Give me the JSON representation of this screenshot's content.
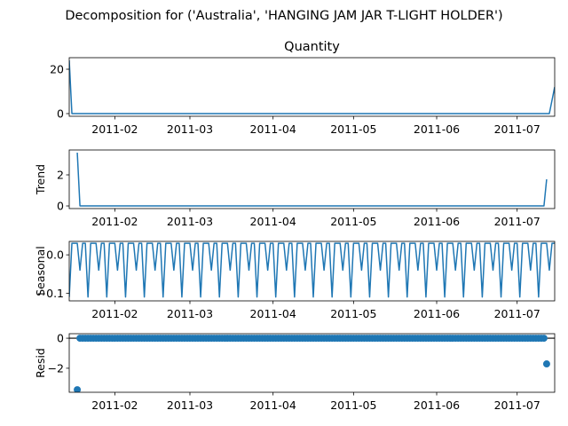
{
  "chart_data": {
    "type": "line",
    "suptitle": "Decomposition for ('Australia', 'HANGING JAM JAR T-LIGHT HOLDER')",
    "x_start": "2011-01-15",
    "x_end": "2011-07-15",
    "x_ticks": [
      {
        "date": "2011-02-01",
        "label": "2011-02"
      },
      {
        "date": "2011-03-01",
        "label": "2011-03"
      },
      {
        "date": "2011-04-01",
        "label": "2011-04"
      },
      {
        "date": "2011-05-01",
        "label": "2011-05"
      },
      {
        "date": "2011-06-01",
        "label": "2011-06"
      },
      {
        "date": "2011-07-01",
        "label": "2011-07"
      }
    ],
    "colors": {
      "series": "#1f77b4",
      "axis": "#000000"
    },
    "panels": [
      {
        "id": "observed",
        "title": "Quantity",
        "ylabel": "",
        "kind": "line",
        "ylim": [
          -1.2,
          25.2
        ],
        "yticks": [
          {
            "v": 0,
            "label": "0"
          },
          {
            "v": 20,
            "label": "20"
          }
        ],
        "points": [
          [
            "2011-01-15",
            24
          ],
          [
            "2011-01-16",
            0
          ],
          [
            "2011-07-13",
            0
          ],
          [
            "2011-07-15",
            12
          ]
        ]
      },
      {
        "id": "trend",
        "title": "",
        "ylabel": "Trend",
        "kind": "line",
        "ylim": [
          -0.17,
          3.6
        ],
        "yticks": [
          {
            "v": 0,
            "label": "0"
          },
          {
            "v": 2,
            "label": "2"
          }
        ],
        "points": [
          [
            "2011-01-18",
            3.43
          ],
          [
            "2011-01-19",
            0
          ],
          [
            "2011-07-11",
            0
          ],
          [
            "2011-07-12",
            1.71
          ]
        ]
      },
      {
        "id": "seasonal",
        "title": "",
        "ylabel": "Seasonal",
        "kind": "line",
        "ylim": [
          -0.12,
          0.035
        ],
        "yticks": [
          {
            "v": 0.0,
            "label": "0.0"
          },
          {
            "v": -0.1,
            "label": "−0.1"
          }
        ],
        "pattern": [
          -0.11,
          0.03,
          0.03,
          0.03,
          -0.04,
          0.03,
          0.03
        ]
      },
      {
        "id": "resid",
        "title": "",
        "ylabel": "Resid",
        "kind": "scatter",
        "ylim": [
          -3.6,
          0.3
        ],
        "yticks": [
          {
            "v": 0,
            "label": "0"
          },
          {
            "v": -2,
            "label": "−2"
          }
        ],
        "zero_line": true,
        "outliers": [
          [
            "2011-01-18",
            -3.43
          ],
          [
            "2011-07-12",
            -1.71
          ]
        ],
        "zero_range": [
          "2011-01-19",
          "2011-07-11"
        ]
      }
    ]
  }
}
